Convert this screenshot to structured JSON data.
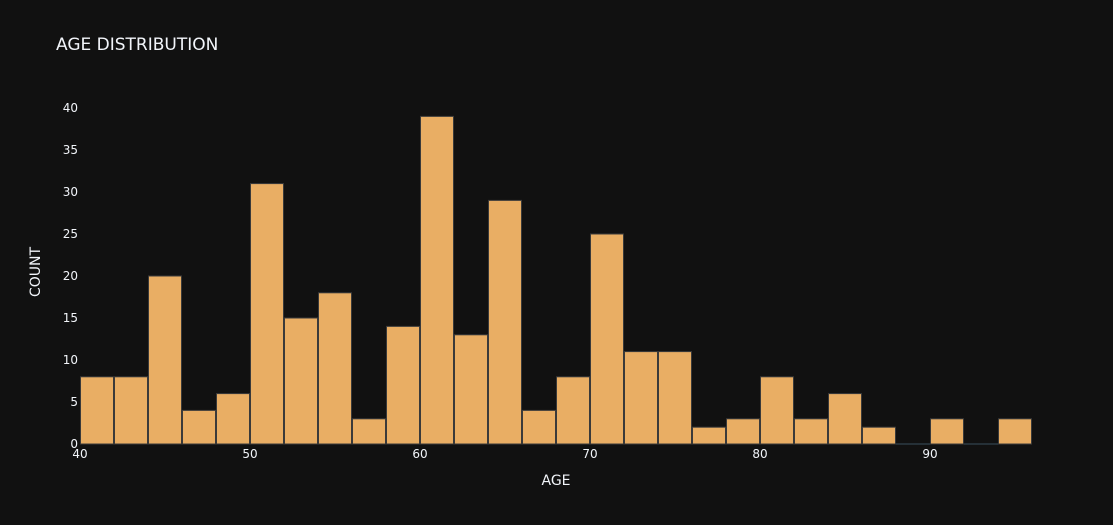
{
  "chart_data": {
    "type": "bar",
    "title": "AGE DISTRIBUTION",
    "xlabel": "AGE",
    "ylabel": "COUNT",
    "bin_width": 2,
    "bins": [
      {
        "start": 40,
        "end": 42,
        "count": 8
      },
      {
        "start": 42,
        "end": 44,
        "count": 8
      },
      {
        "start": 44,
        "end": 46,
        "count": 20
      },
      {
        "start": 46,
        "end": 48,
        "count": 4
      },
      {
        "start": 48,
        "end": 50,
        "count": 6
      },
      {
        "start": 50,
        "end": 52,
        "count": 31
      },
      {
        "start": 52,
        "end": 54,
        "count": 15
      },
      {
        "start": 54,
        "end": 56,
        "count": 18
      },
      {
        "start": 56,
        "end": 58,
        "count": 3
      },
      {
        "start": 58,
        "end": 60,
        "count": 14
      },
      {
        "start": 60,
        "end": 62,
        "count": 39
      },
      {
        "start": 62,
        "end": 64,
        "count": 13
      },
      {
        "start": 64,
        "end": 66,
        "count": 29
      },
      {
        "start": 66,
        "end": 68,
        "count": 4
      },
      {
        "start": 68,
        "end": 70,
        "count": 8
      },
      {
        "start": 70,
        "end": 72,
        "count": 25
      },
      {
        "start": 72,
        "end": 74,
        "count": 11
      },
      {
        "start": 74,
        "end": 76,
        "count": 11
      },
      {
        "start": 76,
        "end": 78,
        "count": 2
      },
      {
        "start": 78,
        "end": 80,
        "count": 3
      },
      {
        "start": 80,
        "end": 82,
        "count": 8
      },
      {
        "start": 82,
        "end": 84,
        "count": 3
      },
      {
        "start": 84,
        "end": 86,
        "count": 6
      },
      {
        "start": 86,
        "end": 88,
        "count": 2
      },
      {
        "start": 88,
        "end": 90,
        "count": 0
      },
      {
        "start": 90,
        "end": 92,
        "count": 3
      },
      {
        "start": 92,
        "end": 94,
        "count": 0
      },
      {
        "start": 94,
        "end": 96,
        "count": 3
      }
    ],
    "xlim": [
      40,
      96
    ],
    "ylim": [
      0,
      41
    ],
    "x_ticks": [
      40,
      50,
      60,
      70,
      80,
      90
    ],
    "y_ticks": [
      0,
      5,
      10,
      15,
      20,
      25,
      30,
      35,
      40
    ],
    "bar_color": "#e9ae64",
    "background_color": "#111111",
    "text_color": "#f2f5fa",
    "grid": false,
    "legend": "none"
  }
}
